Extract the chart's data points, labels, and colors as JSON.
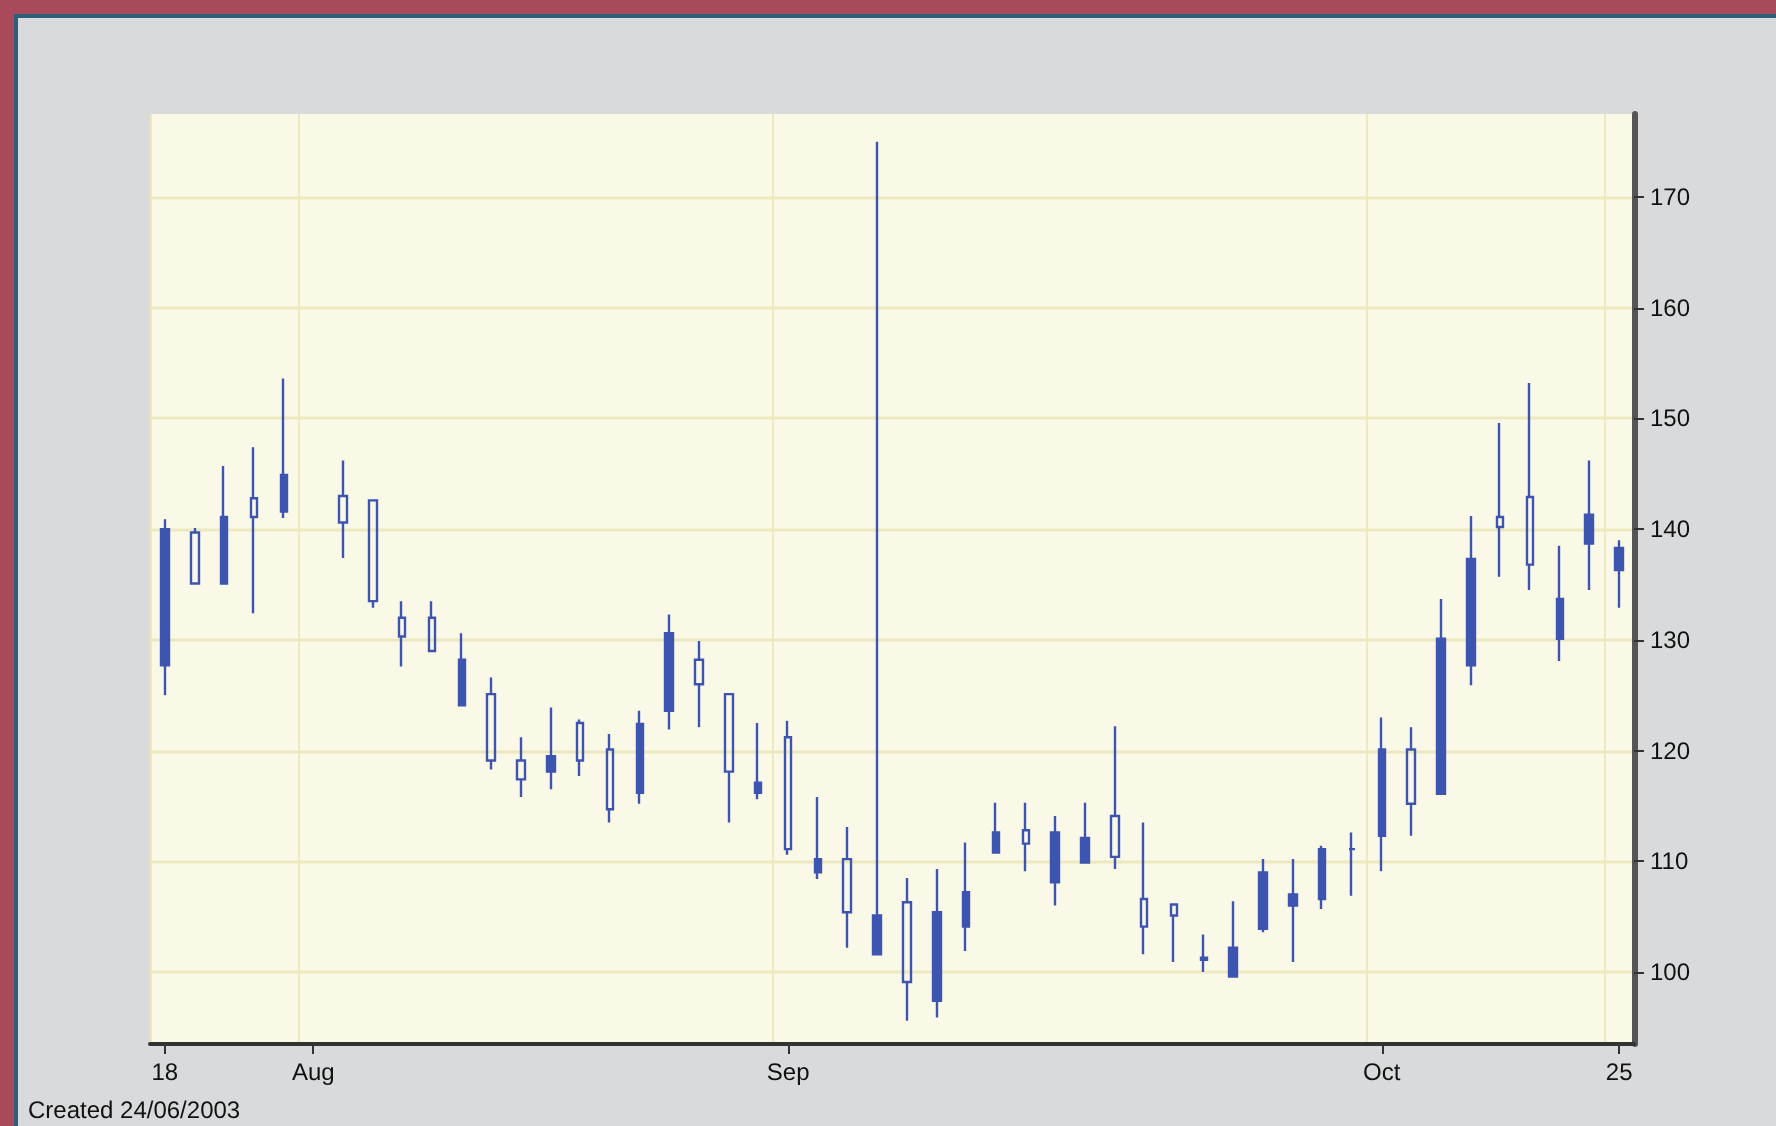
{
  "chart_data": {
    "type": "candlestick",
    "categories": [
      "18",
      null,
      null,
      null,
      null,
      "Aug",
      null,
      null,
      null,
      null,
      null,
      null,
      null,
      null,
      null,
      null,
      null,
      null,
      null,
      null,
      null,
      "Sep",
      null,
      null,
      null,
      null,
      null,
      null,
      null,
      null,
      null,
      null,
      null,
      null,
      null,
      null,
      null,
      null,
      null,
      null,
      null,
      "Oct",
      null,
      null,
      null,
      null,
      null,
      null,
      null,
      "25"
    ],
    "ohlc": [
      [
        127.7,
        140.9,
        125.0,
        140.0
      ],
      [
        139.7,
        140.1,
        135.1,
        135.1
      ],
      [
        135.1,
        145.7,
        135.1,
        141.1
      ],
      [
        142.8,
        147.4,
        132.4,
        141.1
      ],
      [
        141.6,
        153.6,
        141.0,
        144.9
      ],
      null,
      [
        143.0,
        146.2,
        137.4,
        140.6
      ],
      [
        142.6,
        142.6,
        132.9,
        133.5
      ],
      [
        132.0,
        133.5,
        127.6,
        130.3
      ],
      [
        132.0,
        133.5,
        128.9,
        129.0
      ],
      [
        124.1,
        130.6,
        124.1,
        128.2
      ],
      [
        125.1,
        126.6,
        118.3,
        119.1
      ],
      [
        119.1,
        121.2,
        115.8,
        117.4
      ],
      [
        118.1,
        123.9,
        116.5,
        119.5
      ],
      [
        122.5,
        122.8,
        117.7,
        119.1
      ],
      [
        120.1,
        121.5,
        113.5,
        114.7
      ],
      [
        116.2,
        123.6,
        115.2,
        122.4
      ],
      [
        123.6,
        132.3,
        121.9,
        130.6
      ],
      [
        128.2,
        129.9,
        122.1,
        126.0
      ],
      [
        125.1,
        125.1,
        113.5,
        118.1
      ],
      [
        116.2,
        122.5,
        115.6,
        117.1
      ],
      [
        121.2,
        122.7,
        110.6,
        111.1
      ],
      [
        109.0,
        115.8,
        108.4,
        110.2
      ],
      [
        110.2,
        113.1,
        102.2,
        105.4
      ],
      [
        101.6,
        175.0,
        101.6,
        105.1
      ],
      [
        106.3,
        108.5,
        95.6,
        99.1
      ],
      [
        97.4,
        109.3,
        95.9,
        105.4
      ],
      [
        104.1,
        111.7,
        101.9,
        107.2
      ],
      [
        110.8,
        115.3,
        110.8,
        112.6
      ],
      [
        112.8,
        115.3,
        109.1,
        111.6
      ],
      [
        108.1,
        114.1,
        106.0,
        112.6
      ],
      [
        109.9,
        115.3,
        109.9,
        112.1
      ],
      [
        114.1,
        122.2,
        109.3,
        110.4
      ],
      [
        106.6,
        113.5,
        101.6,
        104.1
      ],
      [
        106.1,
        106.1,
        100.9,
        105.1
      ],
      [
        101.1,
        103.4,
        100.0,
        101.3
      ],
      [
        99.6,
        106.4,
        99.6,
        102.2
      ],
      [
        103.9,
        110.2,
        103.6,
        109.0
      ],
      [
        106.0,
        110.2,
        100.9,
        107.0
      ],
      [
        106.6,
        111.4,
        105.7,
        111.1
      ],
      [
        111.1,
        112.6,
        106.9,
        111.1
      ],
      [
        112.3,
        123.0,
        109.1,
        120.1
      ],
      [
        120.1,
        122.1,
        112.3,
        115.2
      ],
      [
        116.1,
        133.7,
        116.1,
        130.1
      ],
      [
        127.7,
        141.2,
        125.9,
        137.3
      ],
      [
        141.1,
        149.6,
        135.7,
        140.2
      ],
      [
        142.9,
        153.2,
        134.5,
        136.8
      ],
      [
        130.1,
        138.5,
        128.1,
        133.7
      ],
      [
        138.7,
        146.2,
        134.5,
        141.3
      ],
      [
        136.3,
        139.0,
        132.9,
        138.3
      ]
    ],
    "color": "#3d55b0",
    "ylim": [
      93.5,
      177.5
    ],
    "yticks": [
      100,
      110,
      120,
      130,
      140,
      150,
      160,
      170
    ],
    "grid": true,
    "annotations": [
      "Created 24/06/2003"
    ]
  }
}
